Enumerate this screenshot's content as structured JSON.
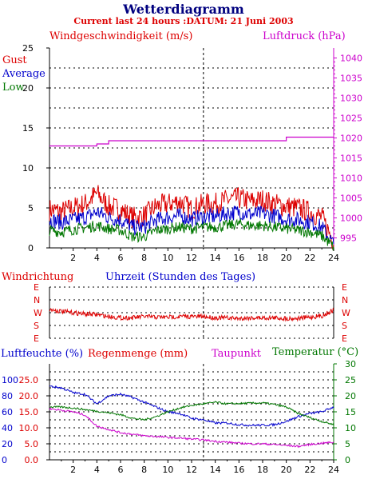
{
  "header": {
    "title": "Wetterdiagramm",
    "subtitle": "Current last 24 hours :DATUM: 21 Juni 2003"
  },
  "colors": {
    "red": "#dd0000",
    "blue": "#0000cc",
    "green": "#007700",
    "magenta": "#cc00cc",
    "navy": "#00007f",
    "grid": "#000000"
  },
  "chart_data": [
    {
      "type": "line",
      "labels": {
        "wind": "Windgeschwindigkeit (m/s)",
        "pressure": "Luftdruck (hPa)",
        "gust": "Gust",
        "average": "Average",
        "low": "Low"
      },
      "x": [
        0,
        1,
        2,
        3,
        4,
        5,
        6,
        7,
        8,
        9,
        10,
        11,
        12,
        13,
        14,
        15,
        16,
        17,
        18,
        19,
        20,
        21,
        22,
        23,
        24
      ],
      "xlim": [
        0,
        24
      ],
      "xticks": [
        2,
        4,
        6,
        8,
        10,
        12,
        14,
        16,
        18,
        20,
        22,
        24
      ],
      "ylim": [
        0,
        25
      ],
      "yticks": [
        0,
        5,
        10,
        15,
        20,
        25
      ],
      "y2lim": [
        992.5,
        1042.5
      ],
      "y2ticks": [
        995,
        1000,
        1005,
        1010,
        1015,
        1020,
        1025,
        1030,
        1035,
        1040
      ],
      "grid": true,
      "series": [
        {
          "name": "Gust",
          "axis": "left",
          "color": "#dd0000",
          "values": [
            4.8,
            4.5,
            5.0,
            5.5,
            6.8,
            5.2,
            4.8,
            3.8,
            4.0,
            5.2,
            5.5,
            5.8,
            4.8,
            5.5,
            5.5,
            6.0,
            6.2,
            5.8,
            6.0,
            5.5,
            5.2,
            5.0,
            4.5,
            3.8,
            0.8
          ]
        },
        {
          "name": "Average",
          "axis": "left",
          "color": "#0000cc",
          "values": [
            3.5,
            3.2,
            3.5,
            3.8,
            4.5,
            3.8,
            3.5,
            2.6,
            2.6,
            3.5,
            3.8,
            4.0,
            3.6,
            3.9,
            3.9,
            4.3,
            4.5,
            4.2,
            4.3,
            4.0,
            3.6,
            3.5,
            3.2,
            2.6,
            0.4
          ]
        },
        {
          "name": "Low",
          "axis": "left",
          "color": "#007700",
          "values": [
            2.2,
            2.0,
            2.3,
            2.5,
            2.8,
            2.4,
            2.2,
            1.4,
            1.4,
            2.2,
            2.4,
            2.6,
            2.4,
            2.6,
            2.6,
            2.8,
            3.0,
            2.8,
            2.8,
            2.6,
            2.4,
            2.2,
            2.0,
            1.5,
            0.1
          ]
        },
        {
          "name": "Luftdruck",
          "axis": "right",
          "color": "#cc00cc",
          "values": [
            1018.0,
            1018.0,
            1018.0,
            1018.0,
            1018.5,
            1019.3,
            1019.3,
            1019.3,
            1019.3,
            1019.3,
            1019.3,
            1019.3,
            1019.3,
            1019.3,
            1019.3,
            1019.3,
            1019.3,
            1019.3,
            1019.3,
            1019.3,
            1020.2,
            1020.2,
            1020.2,
            1020.2,
            1020.2
          ]
        }
      ]
    },
    {
      "type": "line",
      "labels": {
        "direction": "Windrichtung",
        "hour": "Uhrzeit (Stunden des Tages)"
      },
      "ticks": [
        "E",
        "N",
        "W",
        "S",
        "E"
      ],
      "x": [
        0,
        1,
        2,
        3,
        4,
        5,
        6,
        7,
        8,
        9,
        10,
        11,
        12,
        13,
        14,
        15,
        16,
        17,
        18,
        19,
        20,
        21,
        22,
        23,
        24
      ],
      "xlim": [
        0,
        24
      ],
      "ylim": [
        0,
        4
      ],
      "series": [
        {
          "name": "Windrichtung",
          "color": "#dd0000",
          "values": [
            1.75,
            1.9,
            2.0,
            2.1,
            2.15,
            2.3,
            2.4,
            2.4,
            2.3,
            2.35,
            2.35,
            2.3,
            2.3,
            2.3,
            2.4,
            2.4,
            2.45,
            2.4,
            2.4,
            2.4,
            2.45,
            2.45,
            2.35,
            2.25,
            1.8
          ]
        }
      ]
    },
    {
      "type": "line",
      "labels": {
        "humidity": "Luftfeuchte (%)",
        "rain": "Regenmenge (mm)",
        "dewpoint": "Taupunkt",
        "temperature": "Temperatur (°C)"
      },
      "x": [
        0,
        1,
        2,
        3,
        4,
        5,
        6,
        7,
        8,
        9,
        10,
        11,
        12,
        13,
        14,
        15,
        16,
        17,
        18,
        19,
        20,
        21,
        22,
        23,
        24
      ],
      "xlim": [
        0,
        24
      ],
      "xticks": [
        2,
        4,
        6,
        8,
        10,
        12,
        14,
        16,
        18,
        20,
        22,
        24
      ],
      "yticks_humidity": [
        0,
        20,
        40,
        60,
        80,
        100
      ],
      "yticks_rain": [
        0.0,
        5.0,
        10.0,
        15.0,
        20.0,
        25.0
      ],
      "ylim_rain": [
        0,
        30
      ],
      "yticks_temp": [
        0,
        5,
        10,
        15,
        20,
        25,
        30
      ],
      "ylim_temp": [
        0,
        30
      ],
      "grid": true,
      "series": [
        {
          "name": "Luftfeuchte",
          "color": "#0000cc",
          "axis": "humidity",
          "values": [
            23.0,
            22.5,
            21.0,
            20.5,
            17.5,
            20.0,
            20.5,
            19.5,
            18.0,
            16.5,
            15.0,
            14.5,
            13.0,
            12.5,
            11.5,
            11.5,
            11.0,
            10.8,
            10.8,
            11.0,
            12.0,
            13.5,
            14.5,
            15.0,
            16.5
          ]
        },
        {
          "name": "Temperatur",
          "color": "#007700",
          "axis": "temp",
          "values": [
            16.5,
            16.5,
            16.2,
            15.7,
            15.2,
            14.7,
            14.1,
            13.0,
            12.5,
            13.5,
            15.0,
            16.2,
            17.0,
            17.5,
            18.0,
            17.5,
            17.6,
            17.7,
            17.8,
            17.3,
            16.5,
            14.5,
            13.2,
            12.0,
            11.0
          ]
        },
        {
          "name": "Taupunkt",
          "color": "#cc00cc",
          "axis": "temp",
          "values": [
            16.0,
            15.5,
            15.0,
            14.0,
            10.5,
            9.5,
            8.5,
            8.0,
            7.5,
            7.3,
            7.0,
            6.8,
            6.5,
            6.2,
            5.8,
            5.5,
            5.2,
            5.0,
            5.0,
            4.8,
            4.5,
            4.2,
            4.8,
            5.2,
            5.5
          ]
        }
      ]
    }
  ]
}
